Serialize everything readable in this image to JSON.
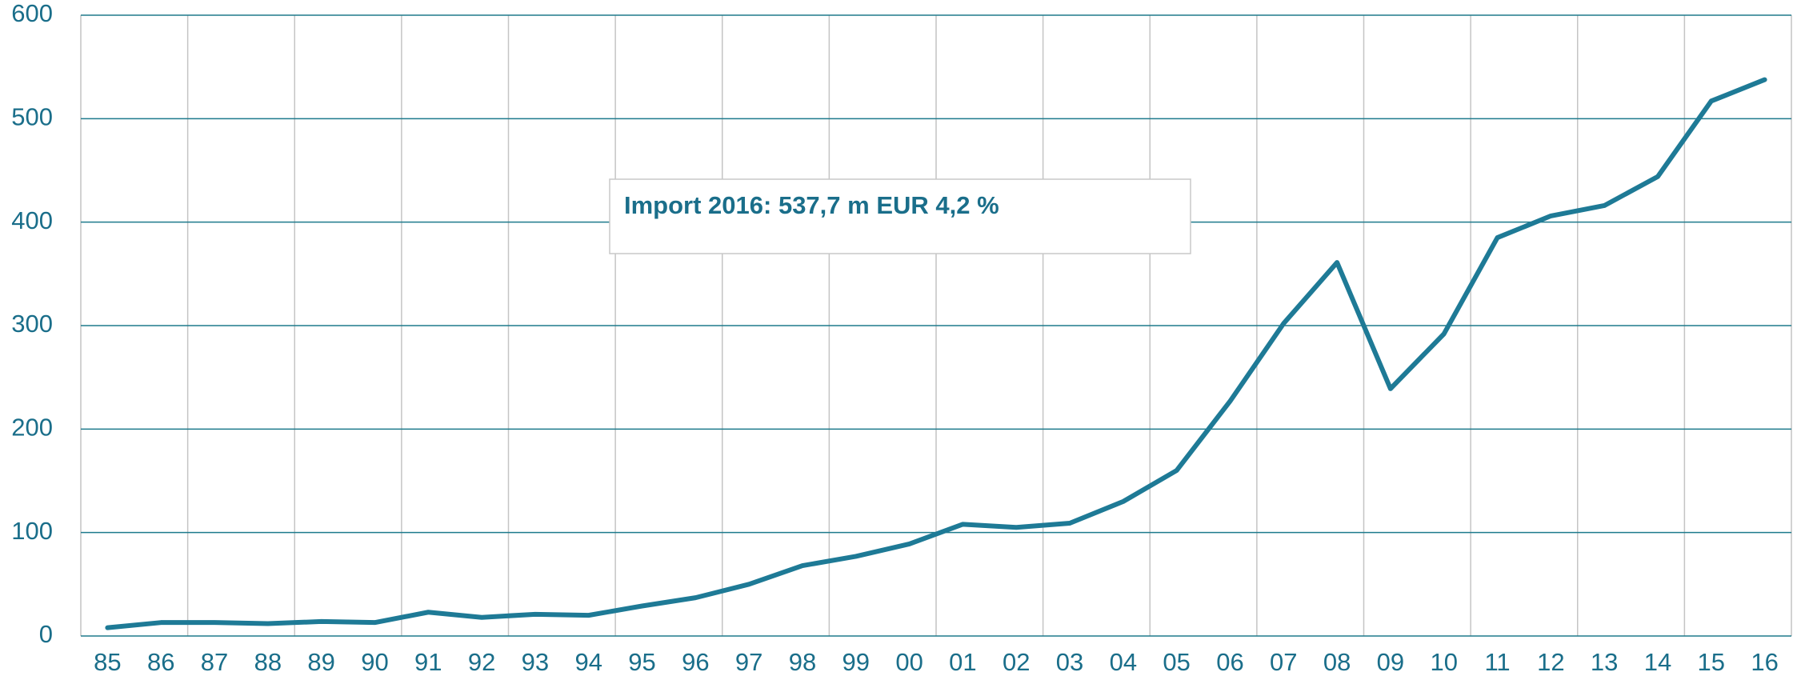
{
  "chart_data": {
    "type": "line",
    "annotation": "Import 2016: 537,7 m EUR 4,2 %",
    "categories": [
      "85",
      "86",
      "87",
      "88",
      "89",
      "90",
      "91",
      "92",
      "93",
      "94",
      "95",
      "96",
      "97",
      "98",
      "99",
      "00",
      "01",
      "02",
      "03",
      "04",
      "05",
      "06",
      "07",
      "08",
      "09",
      "10",
      "11",
      "12",
      "13",
      "14",
      "15",
      "16"
    ],
    "series": [
      {
        "name": "Import",
        "color": "#1e7a96",
        "values": [
          8,
          13,
          13,
          12,
          14,
          13,
          23,
          18,
          21,
          20,
          29,
          37,
          50,
          68,
          77,
          89,
          108,
          105,
          109,
          130,
          160,
          227,
          302,
          361,
          239,
          292,
          385,
          406,
          416,
          444,
          517,
          537.7
        ]
      }
    ],
    "ylim": [
      0,
      600
    ],
    "yticks": [
      0,
      100,
      200,
      300,
      400,
      500,
      600
    ],
    "grid": true
  }
}
